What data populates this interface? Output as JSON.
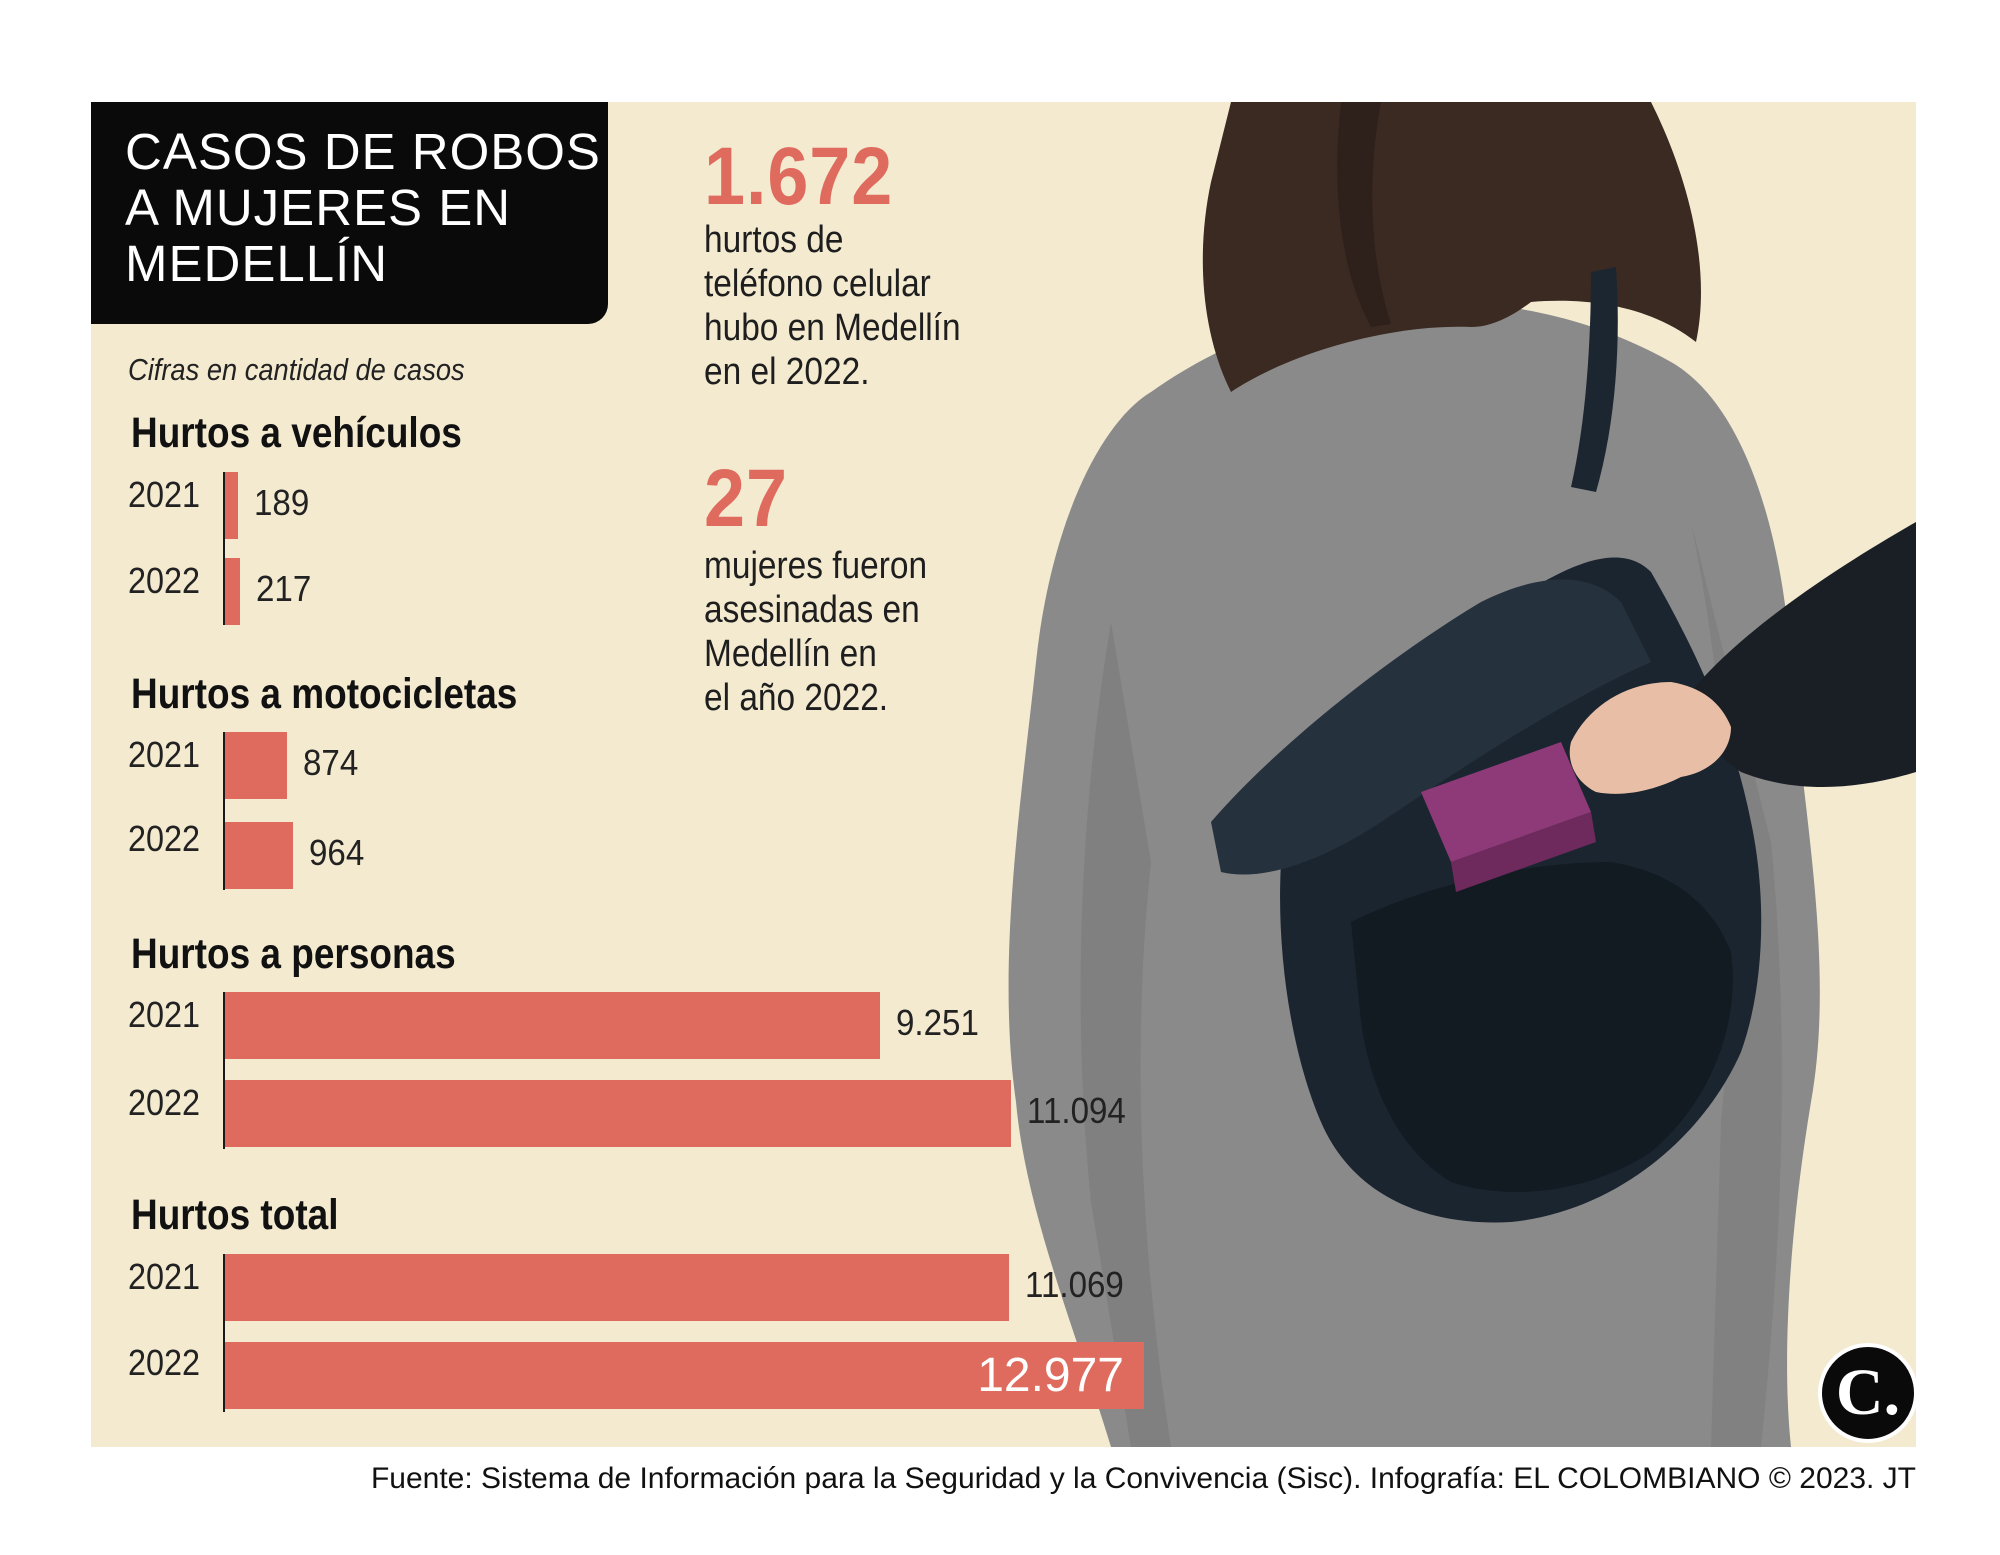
{
  "title_lines": [
    "CASOS DE ROBOS",
    "A MUJERES EN",
    "MEDELLÍN"
  ],
  "subtitle": "Cifras en cantidad de casos",
  "colors": {
    "bar": "#df6a5e",
    "background": "#f3ead0",
    "title_box": "#0a0a0a"
  },
  "chart_data": {
    "type": "bar",
    "orientation": "horizontal",
    "xlim": [
      0,
      12977
    ],
    "groups": [
      {
        "name": "Hurtos a vehículos",
        "categories": [
          "2021",
          "2022"
        ],
        "values": [
          189,
          217
        ],
        "labels": [
          "189",
          "217"
        ]
      },
      {
        "name": "Hurtos a motocicletas",
        "categories": [
          "2021",
          "2022"
        ],
        "values": [
          874,
          964
        ],
        "labels": [
          "874",
          "964"
        ]
      },
      {
        "name": "Hurtos a personas",
        "categories": [
          "2021",
          "2022"
        ],
        "values": [
          9251,
          11094
        ],
        "labels": [
          "9.251",
          "11.094"
        ]
      },
      {
        "name": "Hurtos total",
        "categories": [
          "2021",
          "2022"
        ],
        "values": [
          11069,
          12977
        ],
        "labels": [
          "11.069",
          "12.977"
        ]
      }
    ]
  },
  "stats": [
    {
      "number": "1.672",
      "text_lines": [
        "hurtos de",
        "teléfono celular",
        "hubo en Medellín",
        "en el 2022."
      ]
    },
    {
      "number": "27",
      "text_lines": [
        "mujeres fueron",
        "asesinadas en",
        "Medellín en",
        "el año 2022."
      ]
    }
  ],
  "footer": "Fuente: Sistema de Información para la Seguridad y la Convivencia (Sisc). Infografía: EL COLOMBIANO © 2023. JT",
  "logo_text": "C."
}
